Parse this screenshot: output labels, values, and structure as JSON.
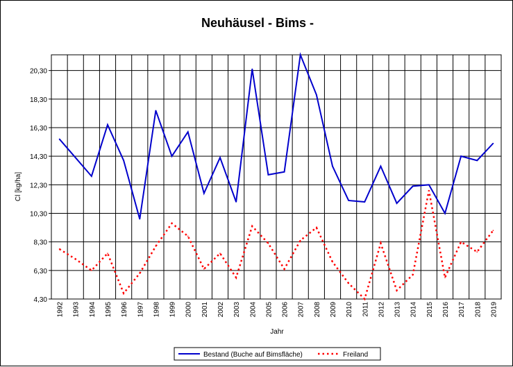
{
  "chart_data": {
    "type": "line",
    "title": "Neuhäusel - Bims -",
    "xlabel": "Jahr",
    "ylabel": "Cl [kg/ha]",
    "x": [
      "1992",
      "1993",
      "1994",
      "1995",
      "1996",
      "1997",
      "1998",
      "1999",
      "2000",
      "2001",
      "2002",
      "2003",
      "2004",
      "2005",
      "2006",
      "2007",
      "2008",
      "2009",
      "2010",
      "2011",
      "2012",
      "2013",
      "2014",
      "2015",
      "2016",
      "2017",
      "2018",
      "2019"
    ],
    "yticks": [
      "4,30",
      "6,30",
      "8,30",
      "10,30",
      "12,30",
      "14,30",
      "16,30",
      "18,30",
      "20,30"
    ],
    "ylim": [
      4.3,
      21.4
    ],
    "grid": true,
    "legend_position": "bottom",
    "series": [
      {
        "name": "Bestand (Buche auf Bimsfläche)",
        "color": "#0000cc",
        "style": "solid",
        "values": [
          15.5,
          14.2,
          12.9,
          16.5,
          14.0,
          9.9,
          17.5,
          14.3,
          16.0,
          11.7,
          14.2,
          11.1,
          20.4,
          13.0,
          13.2,
          21.4,
          18.6,
          13.6,
          11.2,
          11.1,
          13.6,
          11.0,
          12.2,
          12.3,
          10.3,
          14.3,
          14.0,
          15.2
        ]
      },
      {
        "name": "Freiland",
        "color": "#ff0000",
        "style": "dotted",
        "values": [
          7.8,
          7.1,
          6.3,
          7.5,
          4.7,
          6.1,
          8.0,
          9.6,
          8.7,
          6.4,
          7.5,
          5.8,
          9.4,
          8.2,
          6.4,
          8.4,
          9.3,
          6.9,
          5.4,
          4.3,
          8.2,
          4.9,
          6.0,
          11.9,
          5.8,
          8.3,
          7.6,
          9.1
        ]
      }
    ]
  }
}
